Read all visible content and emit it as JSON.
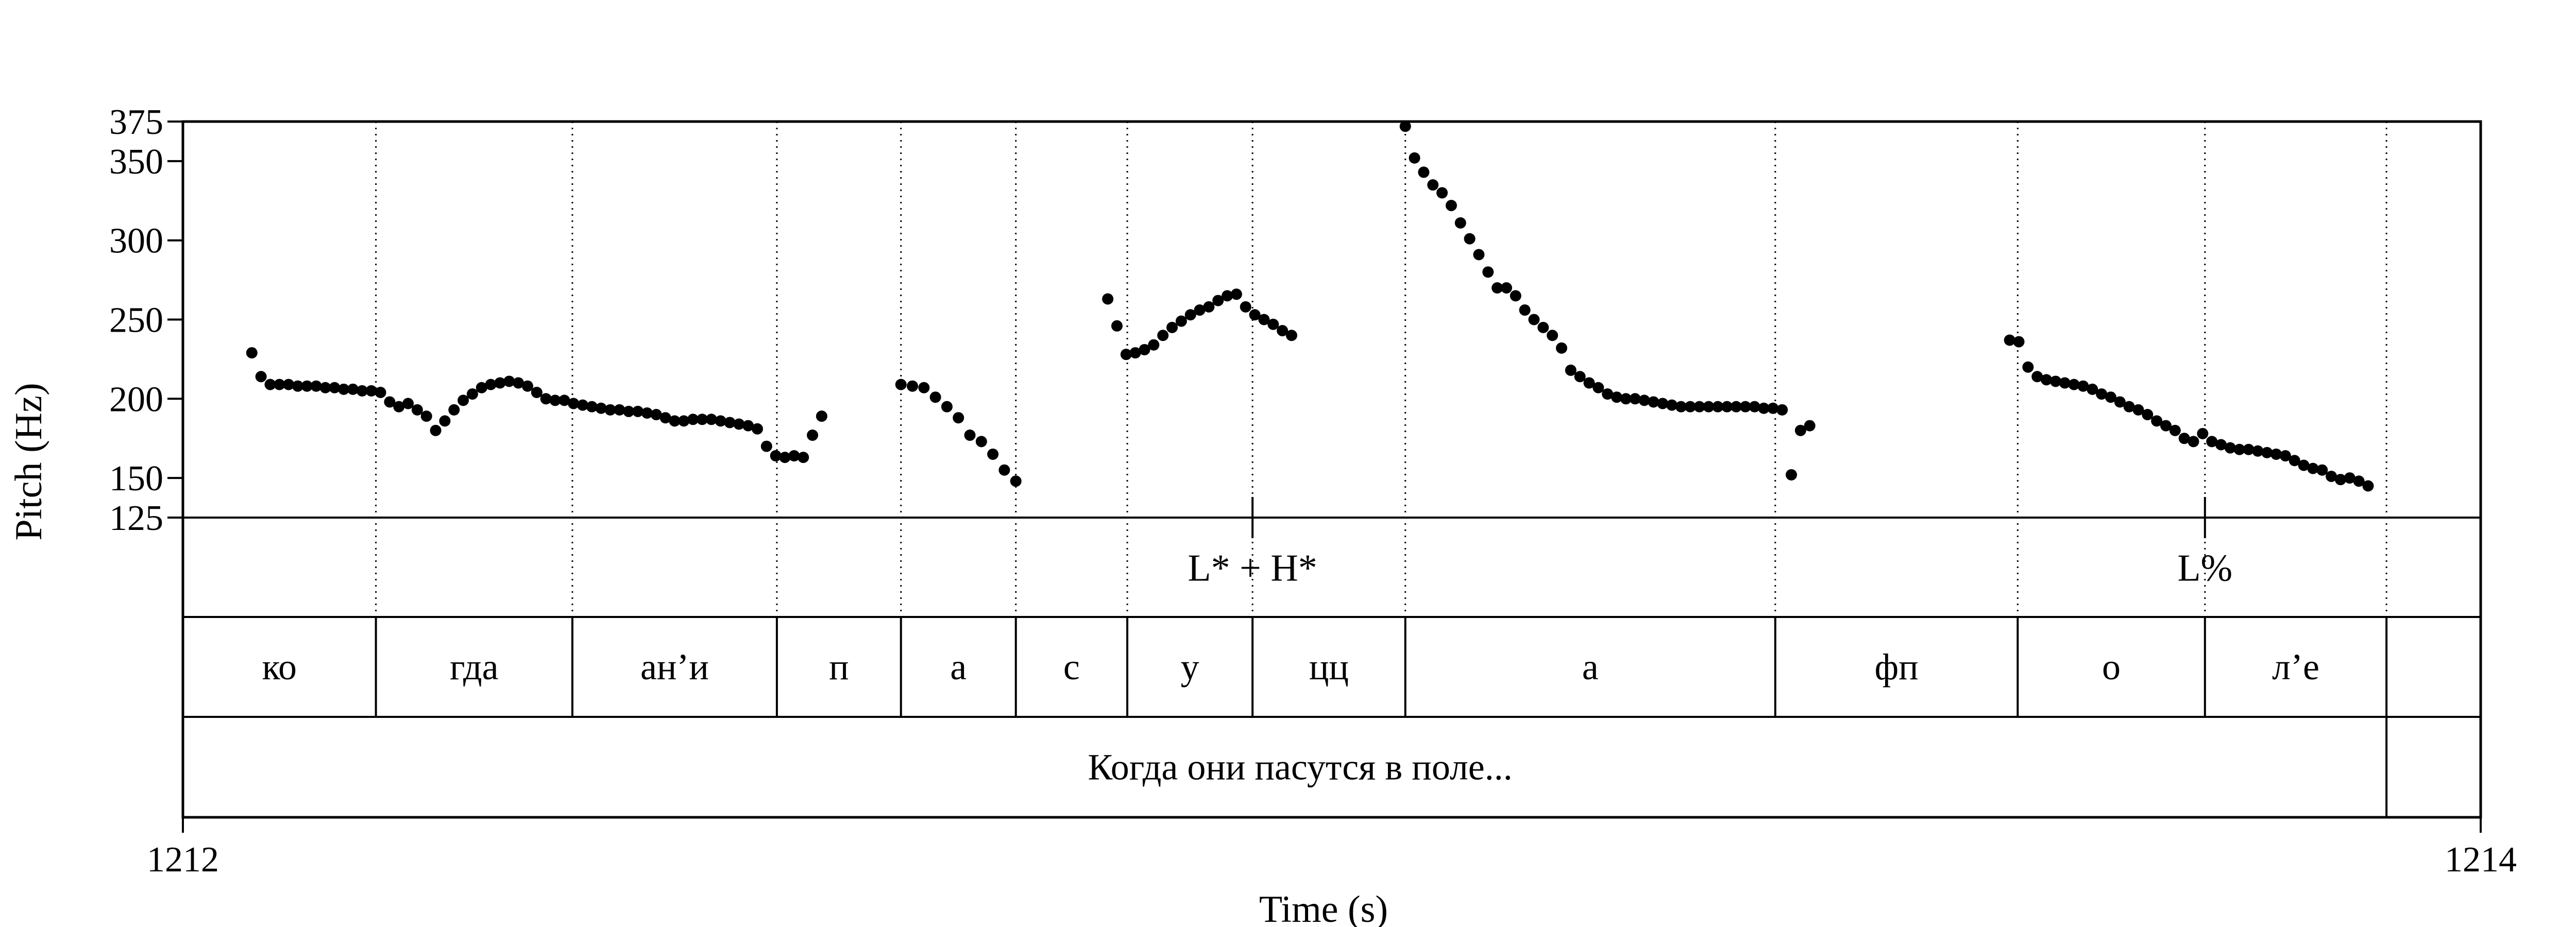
{
  "chart_data": {
    "type": "scatter",
    "xlabel": "Time (s)",
    "ylabel": "Pitch (Hz)",
    "xlim": [
      1212,
      1214
    ],
    "ylim": [
      125,
      375
    ],
    "x_tick_labels": [
      "1212",
      "1214"
    ],
    "y_ticks": [
      125,
      150,
      200,
      250,
      300,
      350,
      375
    ],
    "y_tick_labels": [
      "125",
      "150",
      "200",
      "250",
      "300",
      "350",
      "375"
    ],
    "boundaries": [
      1212.168,
      1212.339,
      1212.517,
      1212.625,
      1212.725,
      1212.822,
      1212.931,
      1213.064,
      1213.386,
      1213.597,
      1213.76,
      1213.918
    ],
    "tones": [
      {
        "label": "L* + H*",
        "time": 1212.931
      },
      {
        "label": "L%",
        "time": 1213.76
      }
    ],
    "segments": [
      "ко",
      "гда",
      "ан’и",
      "п",
      "а",
      "с",
      "у",
      "цц",
      "а",
      "фп",
      "о",
      "л’е"
    ],
    "sentence": "Когда они пасутся в поле...",
    "series": [
      {
        "x": [
          1212.06,
          1212.068,
          1212.076,
          1212.084,
          1212.092,
          1212.1,
          1212.108,
          1212.116,
          1212.124,
          1212.132,
          1212.14,
          1212.148,
          1212.156,
          1212.164,
          1212.172,
          1212.18,
          1212.188,
          1212.196,
          1212.204,
          1212.212,
          1212.22,
          1212.228,
          1212.236,
          1212.244,
          1212.252,
          1212.26,
          1212.268,
          1212.276,
          1212.284,
          1212.292,
          1212.3,
          1212.308,
          1212.316,
          1212.324,
          1212.332,
          1212.34,
          1212.348,
          1212.356,
          1212.364,
          1212.372,
          1212.38,
          1212.388,
          1212.396,
          1212.404,
          1212.412,
          1212.42,
          1212.428,
          1212.436,
          1212.444,
          1212.452,
          1212.46,
          1212.468,
          1212.476,
          1212.484,
          1212.492,
          1212.5,
          1212.508,
          1212.516,
          1212.524,
          1212.532,
          1212.54,
          1212.548,
          1212.556
        ],
        "y": [
          229,
          214,
          209,
          209,
          209,
          208,
          208,
          208,
          207,
          207,
          206,
          206,
          205,
          205,
          204,
          198,
          195,
          197,
          193,
          189,
          180,
          186,
          193,
          199,
          203,
          207,
          209,
          210,
          211,
          210,
          208,
          204,
          200,
          199,
          199,
          197,
          196,
          195,
          194,
          193,
          193,
          192,
          192,
          191,
          190,
          188,
          186,
          186,
          187,
          187,
          187,
          186,
          185,
          184,
          183,
          181,
          170,
          164,
          163,
          164,
          163,
          177,
          189
        ]
      },
      {
        "x": [
          1212.625,
          1212.635,
          1212.645,
          1212.655,
          1212.665,
          1212.675,
          1212.685,
          1212.695,
          1212.705,
          1212.715,
          1212.725
        ],
        "y": [
          209,
          208,
          207,
          201,
          195,
          188,
          177,
          173,
          165,
          155,
          148
        ]
      },
      {
        "x": [
          1212.805,
          1212.813,
          1212.821,
          1212.829,
          1212.837,
          1212.845,
          1212.853,
          1212.861,
          1212.869,
          1212.877,
          1212.885,
          1212.893,
          1212.901,
          1212.909,
          1212.917,
          1212.925,
          1212.933,
          1212.941,
          1212.949,
          1212.957,
          1212.965
        ],
        "y": [
          263,
          246,
          228,
          229,
          231,
          234,
          240,
          245,
          249,
          253,
          256,
          258,
          262,
          265,
          266,
          258,
          253,
          250,
          247,
          243,
          240
        ]
      },
      {
        "x": [
          1213.064,
          1213.072,
          1213.08,
          1213.088,
          1213.096,
          1213.104,
          1213.112,
          1213.12,
          1213.128,
          1213.136,
          1213.144,
          1213.152,
          1213.16,
          1213.168,
          1213.176,
          1213.184,
          1213.192,
          1213.2,
          1213.208,
          1213.216,
          1213.224,
          1213.232,
          1213.24,
          1213.248,
          1213.256,
          1213.264,
          1213.272,
          1213.28,
          1213.288,
          1213.296,
          1213.304,
          1213.312,
          1213.32,
          1213.328,
          1213.336,
          1213.344,
          1213.352,
          1213.36,
          1213.368,
          1213.376,
          1213.384,
          1213.392,
          1213.4,
          1213.408,
          1213.416
        ],
        "y": [
          372,
          352,
          343,
          335,
          330,
          322,
          311,
          301,
          291,
          280,
          270,
          270,
          265,
          256,
          250,
          245,
          240,
          232,
          218,
          214,
          210,
          207,
          203,
          201,
          200,
          200,
          199,
          198,
          197,
          196,
          195,
          195,
          195,
          195,
          195,
          195,
          195,
          195,
          195,
          194,
          194,
          193,
          152,
          180,
          183
        ]
      },
      {
        "x": [
          1213.59,
          1213.598,
          1213.606,
          1213.614,
          1213.622,
          1213.63,
          1213.638,
          1213.646,
          1213.654,
          1213.662,
          1213.67,
          1213.678,
          1213.686,
          1213.694,
          1213.702,
          1213.71,
          1213.718,
          1213.726,
          1213.734,
          1213.742,
          1213.75,
          1213.758,
          1213.766,
          1213.774,
          1213.782,
          1213.79,
          1213.798,
          1213.806,
          1213.814,
          1213.822,
          1213.83,
          1213.838,
          1213.846,
          1213.854,
          1213.862,
          1213.87,
          1213.878,
          1213.886,
          1213.894,
          1213.902
        ],
        "y": [
          237,
          236,
          220,
          214,
          212,
          211,
          210,
          209,
          208,
          206,
          203,
          201,
          198,
          195,
          193,
          190,
          186,
          183,
          180,
          175,
          173,
          178,
          173,
          171,
          169,
          168,
          168,
          167,
          166,
          165,
          164,
          161,
          158,
          156,
          155,
          151,
          149,
          150,
          148,
          145
        ]
      }
    ]
  }
}
